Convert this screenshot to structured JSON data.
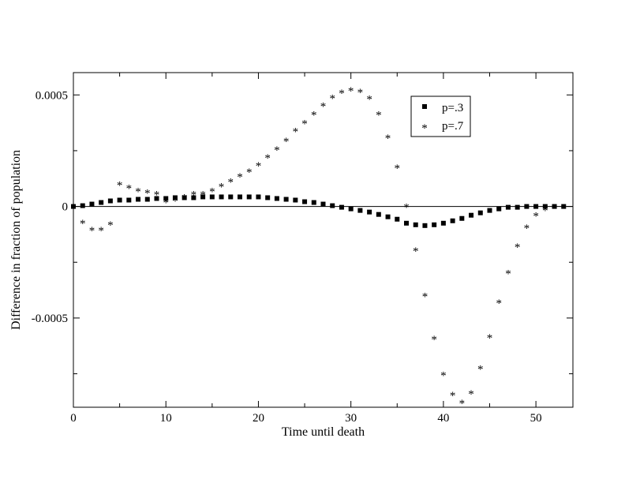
{
  "chart_data": {
    "type": "scatter",
    "title": "",
    "xlabel": "Time until death",
    "ylabel": "Difference in fraction of population",
    "xlim": [
      0,
      54
    ],
    "ylim": [
      -0.0009,
      0.0006
    ],
    "xticks": [
      0,
      10,
      20,
      30,
      40,
      50
    ],
    "xtick_labels": [
      "0",
      "10",
      "20",
      "30",
      "40",
      "50"
    ],
    "yticks": [
      -0.0005,
      0,
      0.0005
    ],
    "ytick_labels": [
      "-0.0005",
      "0",
      "0.0005"
    ],
    "grid": false,
    "legend_position": "top-right",
    "series": [
      {
        "name": "p=.3",
        "marker": "square",
        "x": [
          0,
          1,
          2,
          3,
          4,
          5,
          6,
          7,
          8,
          9,
          10,
          11,
          12,
          13,
          14,
          15,
          16,
          17,
          18,
          19,
          20,
          21,
          22,
          23,
          24,
          25,
          26,
          27,
          28,
          29,
          30,
          31,
          32,
          33,
          34,
          35,
          36,
          37,
          38,
          39,
          40,
          41,
          42,
          43,
          44,
          45,
          46,
          47,
          48,
          49,
          50,
          51,
          52,
          53
        ],
        "y": [
          0.0,
          3.6e-06,
          1.07e-05,
          1.78e-05,
          2.5e-05,
          2.86e-05,
          2.86e-05,
          3.21e-05,
          3.21e-05,
          3.57e-05,
          3.57e-05,
          3.93e-05,
          3.93e-05,
          3.93e-05,
          4.29e-05,
          4.29e-05,
          4.29e-05,
          4.29e-05,
          4.29e-05,
          4.29e-05,
          4.29e-05,
          3.93e-05,
          3.57e-05,
          3.21e-05,
          2.86e-05,
          2.14e-05,
          1.78e-05,
          1.07e-05,
          3.6e-06,
          -3.6e-06,
          -1.07e-05,
          -1.78e-05,
          -2.5e-05,
          -3.57e-05,
          -4.64e-05,
          -5.71e-05,
          -7.5e-05,
          -8.21e-05,
          -8.57e-05,
          -8.21e-05,
          -7.5e-05,
          -6.43e-05,
          -5.36e-05,
          -3.93e-05,
          -2.86e-05,
          -1.78e-05,
          -1.07e-05,
          -3.6e-06,
          -3.6e-06,
          0.0,
          0.0,
          0.0,
          0.0,
          0.0
        ]
      },
      {
        "name": "p=.7",
        "marker": "asterisk",
        "x": [
          1,
          2,
          3,
          4,
          5,
          6,
          7,
          8,
          9,
          10,
          11,
          12,
          13,
          14,
          15,
          16,
          17,
          18,
          19,
          20,
          21,
          22,
          23,
          24,
          25,
          26,
          27,
          28,
          29,
          30,
          31,
          32,
          33,
          34,
          35,
          36,
          37,
          38,
          39,
          40,
          41,
          42,
          43,
          44,
          45,
          46,
          47,
          48,
          49,
          50,
          51,
          52
        ],
        "y": [
          -7.14e-05,
          -0.0001036,
          -0.0001036,
          -7.86e-05,
          0.0001,
          8.57e-05,
          7.14e-05,
          6.43e-05,
          5.71e-05,
          2.14e-05,
          2.86e-05,
          4.29e-05,
          5.71e-05,
          5.71e-05,
          7.14e-05,
          9.29e-05,
          0.0001143,
          0.0001357,
          0.0001571,
          0.0001857,
          0.0002214,
          0.0002571,
          0.0002964,
          0.0003393,
          0.000375,
          0.0004143,
          0.0004536,
          0.0004893,
          0.0005107,
          0.0005214,
          0.0005143,
          0.0004857,
          0.0004143,
          0.0003107,
          0.000175,
          0.0,
          -0.0001964,
          -0.0004,
          -0.0005929,
          -0.0007536,
          -0.0008429,
          -0.0008786,
          -0.0008357,
          -0.000725,
          -0.0005857,
          -0.0004286,
          -0.0002964,
          -0.0001786,
          -9.29e-05,
          -3.93e-05,
          -1.43e-05,
          -3.6e-06
        ]
      }
    ]
  }
}
